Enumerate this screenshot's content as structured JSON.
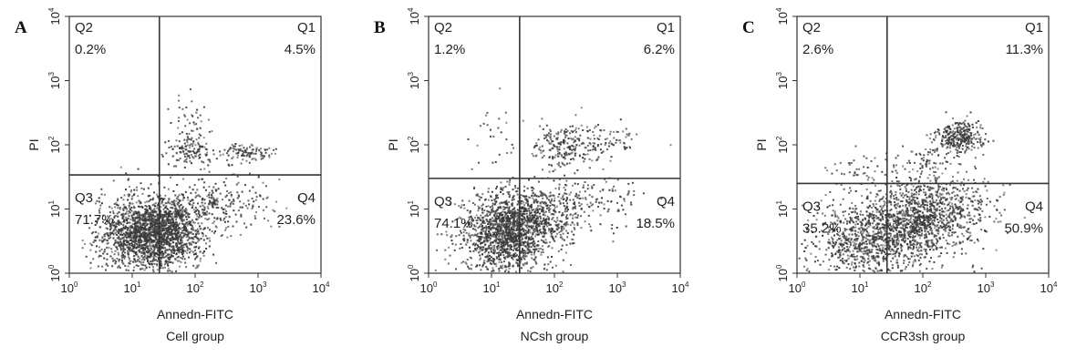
{
  "chart_data": [
    {
      "type": "scatter",
      "panel_label": "A",
      "xlabel": "Annedn-FITC",
      "ylabel": "PI",
      "group_label": "Cell group",
      "x_scale": "log",
      "y_scale": "log",
      "xlim": [
        1,
        10000
      ],
      "ylim": [
        1,
        10000
      ],
      "x_ticks": [
        "10",
        "10",
        "10",
        "10",
        "10"
      ],
      "x_tick_exponents": [
        "0",
        "1",
        "2",
        "3",
        "4"
      ],
      "y_ticks": [
        "10",
        "10",
        "10",
        "10",
        "10"
      ],
      "y_tick_exponents": [
        "0",
        "1",
        "2",
        "3",
        "4"
      ],
      "gate": {
        "x": 27,
        "y": 34
      },
      "quadrants": [
        {
          "name": "Q1",
          "value": "4.5%"
        },
        {
          "name": "Q2",
          "value": "0.2%"
        },
        {
          "name": "Q3",
          "value": "71.7%"
        },
        {
          "name": "Q4",
          "value": "23.6%"
        }
      ],
      "grid": false,
      "dot_color": "#3a3a3a",
      "clusters": [
        {
          "cx": 15,
          "cy": 4,
          "sx": 0.36,
          "sy": 0.3,
          "n": 1200
        },
        {
          "cx": 40,
          "cy": 6,
          "sx": 0.35,
          "sy": 0.26,
          "n": 650
        },
        {
          "cx": 250,
          "cy": 12,
          "sx": 0.45,
          "sy": 0.2,
          "n": 200
        },
        {
          "cx": 30,
          "cy": 3,
          "sx": 0.28,
          "sy": 0.22,
          "n": 300
        },
        {
          "cx": 80,
          "cy": 80,
          "sx": 0.18,
          "sy": 0.14,
          "n": 140
        },
        {
          "cx": 600,
          "cy": 75,
          "sx": 0.22,
          "sy": 0.06,
          "n": 110
        },
        {
          "cx": 90,
          "cy": 250,
          "sx": 0.16,
          "sy": 0.16,
          "n": 35
        }
      ]
    },
    {
      "type": "scatter",
      "panel_label": "B",
      "xlabel": "Annedn-FITC",
      "ylabel": "PI",
      "group_label": "NCsh group",
      "x_scale": "log",
      "y_scale": "log",
      "xlim": [
        1,
        10000
      ],
      "ylim": [
        1,
        10000
      ],
      "x_ticks": [
        "10",
        "10",
        "10",
        "10",
        "10"
      ],
      "x_tick_exponents": [
        "0",
        "1",
        "2",
        "3",
        "4"
      ],
      "y_ticks": [
        "10",
        "10",
        "10",
        "10",
        "10"
      ],
      "y_tick_exponents": [
        "0",
        "1",
        "2",
        "3",
        "4"
      ],
      "gate": {
        "x": 28,
        "y": 30
      },
      "quadrants": [
        {
          "name": "Q1",
          "value": "6.2%"
        },
        {
          "name": "Q2",
          "value": "1.2%"
        },
        {
          "name": "Q3",
          "value": "74.1%"
        },
        {
          "name": "Q4",
          "value": "18.5%"
        }
      ],
      "grid": false,
      "dot_color": "#3a3a3a",
      "clusters": [
        {
          "cx": 16,
          "cy": 4,
          "sx": 0.34,
          "sy": 0.3,
          "n": 1250
        },
        {
          "cx": 45,
          "cy": 7,
          "sx": 0.36,
          "sy": 0.25,
          "n": 550
        },
        {
          "cx": 300,
          "cy": 12,
          "sx": 0.45,
          "sy": 0.2,
          "n": 160
        },
        {
          "cx": 150,
          "cy": 90,
          "sx": 0.26,
          "sy": 0.18,
          "n": 220
        },
        {
          "cx": 800,
          "cy": 120,
          "sx": 0.25,
          "sy": 0.15,
          "n": 70
        },
        {
          "cx": 12,
          "cy": 130,
          "sx": 0.2,
          "sy": 0.25,
          "n": 25
        }
      ]
    },
    {
      "type": "scatter",
      "panel_label": "C",
      "xlabel": "Annedn-FITC",
      "ylabel": "PI",
      "group_label": "CCR3sh group",
      "x_scale": "log",
      "y_scale": "log",
      "xlim": [
        1,
        10000
      ],
      "ylim": [
        1,
        10000
      ],
      "x_ticks": [
        "10",
        "10",
        "10",
        "10",
        "10"
      ],
      "x_tick_exponents": [
        "0",
        "1",
        "2",
        "3",
        "4"
      ],
      "y_ticks": [
        "10",
        "10",
        "10",
        "10",
        "10"
      ],
      "y_tick_exponents": [
        "0",
        "1",
        "2",
        "3",
        "4"
      ],
      "gate": {
        "x": 27,
        "y": 25
      },
      "quadrants": [
        {
          "name": "Q1",
          "value": "11.3%"
        },
        {
          "name": "Q2",
          "value": "2.6%"
        },
        {
          "name": "Q3",
          "value": "35.2%"
        },
        {
          "name": "Q4",
          "value": "50.9%"
        }
      ],
      "grid": false,
      "dot_color": "#3a3a3a",
      "clusters": [
        {
          "cx": 10,
          "cy": 3,
          "sx": 0.38,
          "sy": 0.32,
          "n": 700
        },
        {
          "cx": 70,
          "cy": 6,
          "sx": 0.4,
          "sy": 0.3,
          "n": 1000
        },
        {
          "cx": 300,
          "cy": 10,
          "sx": 0.42,
          "sy": 0.25,
          "n": 300
        },
        {
          "cx": 400,
          "cy": 130,
          "sx": 0.2,
          "sy": 0.12,
          "n": 300
        },
        {
          "cx": 120,
          "cy": 50,
          "sx": 0.3,
          "sy": 0.2,
          "n": 110
        },
        {
          "cx": 8,
          "cy": 40,
          "sx": 0.2,
          "sy": 0.15,
          "n": 40
        }
      ]
    }
  ]
}
